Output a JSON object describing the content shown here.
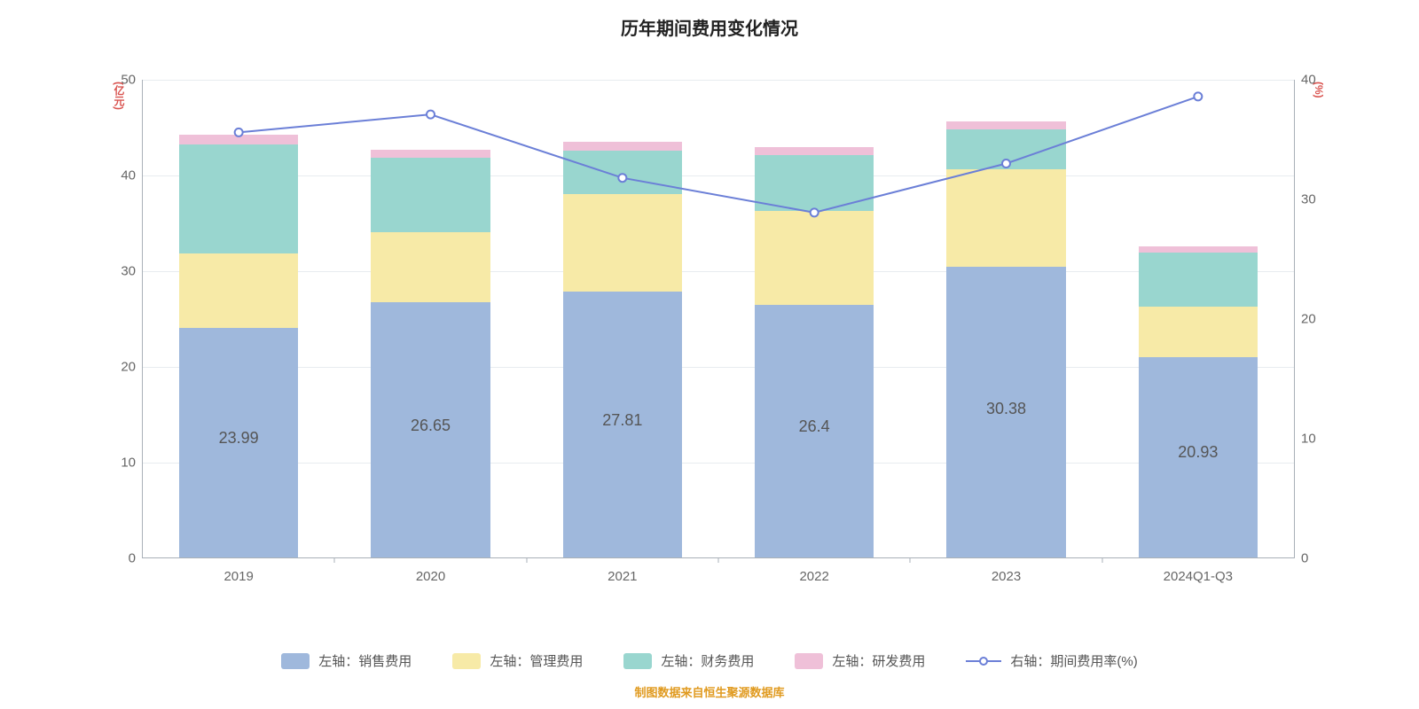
{
  "title": "历年期间费用变化情况",
  "title_fontsize": 20,
  "title_color": "#222222",
  "background_color": "#ffffff",
  "axis_line_color": "#a9b0b8",
  "grid_color": "#e8ecef",
  "tick_font_color": "#666666",
  "tick_fontsize": 15,
  "bar_label_fontsize": 18,
  "bar_label_color": "#555555",
  "y_left": {
    "title": "(亿元)",
    "title_color": "#d9534f",
    "lim": [
      0,
      50
    ],
    "tick_step": 10
  },
  "y_right": {
    "title": "(%)",
    "title_color": "#d9534f",
    "lim": [
      0,
      40
    ],
    "tick_step": 10
  },
  "categories": [
    "2019",
    "2020",
    "2021",
    "2022",
    "2023",
    "2024Q1-Q3"
  ],
  "bar_width_ratio": 0.62,
  "series": {
    "sales": {
      "label": "左轴：销售费用",
      "color": "#9fb8dc",
      "values": [
        23.99,
        26.65,
        27.81,
        26.4,
        30.38,
        20.93
      ]
    },
    "admin": {
      "label": "左轴：管理费用",
      "color": "#f7eaa7",
      "values": [
        7.8,
        7.3,
        10.2,
        9.8,
        10.2,
        5.3
      ]
    },
    "finance": {
      "label": "左轴：财务费用",
      "color": "#99d6cf",
      "values": [
        11.4,
        7.8,
        4.5,
        5.8,
        4.1,
        5.6
      ]
    },
    "rnd": {
      "label": "左轴：研发费用",
      "color": "#efc0d8",
      "values": [
        1.0,
        0.8,
        0.9,
        0.9,
        0.9,
        0.7
      ]
    }
  },
  "stack_order": [
    "sales",
    "admin",
    "finance",
    "rnd"
  ],
  "bar_value_labels": [
    23.99,
    26.65,
    27.81,
    26.4,
    30.38,
    20.93
  ],
  "line": {
    "label": "右轴：期间费用率(%)",
    "color": "#6b7fd7",
    "marker_fill": "#ffffff",
    "marker_border": "#6b7fd7",
    "marker_radius": 4.5,
    "line_width": 2,
    "values": [
      35.6,
      37.1,
      31.8,
      28.9,
      33.0,
      38.6
    ]
  },
  "legend_fontsize": 15,
  "legend_color": "#555555",
  "source_text": "制图数据来自恒生聚源数据库",
  "source_color": "#e09a1f",
  "source_fontsize": 13
}
